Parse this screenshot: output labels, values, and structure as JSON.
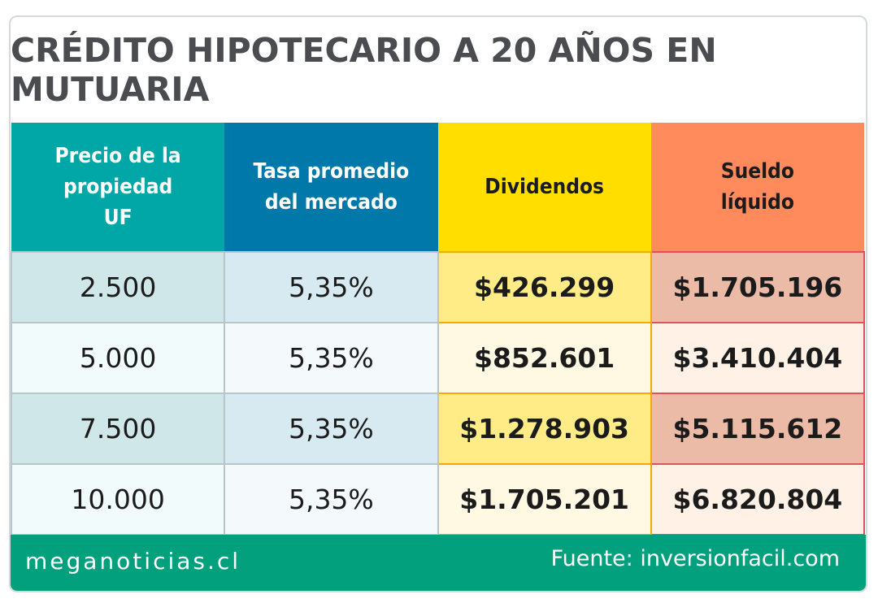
{
  "title": "CRÉDITO HIPOTECARIO A 20 AÑOS EN MUTUARIA",
  "chart_data": {
    "type": "table",
    "title": "CRÉDITO HIPOTECARIO A 20 AÑOS EN MUTUARIA",
    "columns": [
      "Precio de la propiedad UF",
      "Tasa promedio del mercado",
      "Dividendos",
      "Sueldo líquido"
    ],
    "header_lines": [
      [
        "Precio de la",
        "propiedad",
        "UF"
      ],
      [
        "Tasa promedio",
        "del mercado"
      ],
      [
        "Dividendos"
      ],
      [
        "Sueldo",
        "líquido"
      ]
    ],
    "rows": [
      [
        "2.500",
        "5,35%",
        "$426.299",
        "$1.705.196"
      ],
      [
        "5.000",
        "5,35%",
        "$852.601",
        "$3.410.404"
      ],
      [
        "7.500",
        "5,35%",
        "$1.278.903",
        "$5.115.612"
      ],
      [
        "10.000",
        "5,35%",
        "$1.705.201",
        "$6.820.804"
      ]
    ]
  },
  "footer": {
    "brand": "meganoticias.cl",
    "source": "Fuente: inversionfacil.com"
  },
  "colors": {
    "teal": "#00a7a6",
    "blue": "#0078a9",
    "yellow": "#ffde00",
    "orange": "#ff8a5b",
    "footer": "#03a07d"
  }
}
